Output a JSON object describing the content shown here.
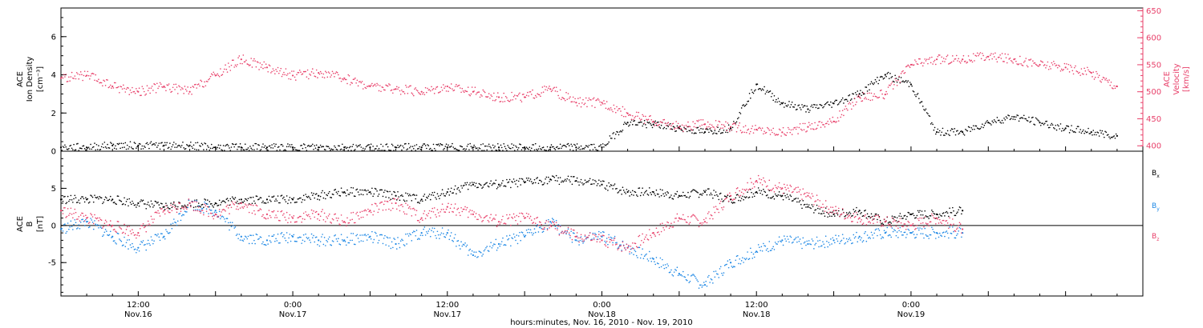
{
  "chart_data": [
    {
      "type": "scatter",
      "panel": "top",
      "ylabel": [
        "ACE",
        "Ion Density",
        "[cm⁻³]"
      ],
      "y_ticks": [
        0,
        2,
        4,
        6
      ],
      "ylim": [
        0,
        7.5
      ],
      "y2label": [
        "ACE",
        "Velocity",
        "[km/s]"
      ],
      "y2_ticks": [
        400,
        450,
        500,
        550,
        600,
        650
      ],
      "y2lim": [
        390,
        655
      ],
      "x_hours_range": [
        0,
        84
      ],
      "series": [
        {
          "name": "",
          "color": "#000000",
          "axis": "left",
          "x_hours": [
            0,
            2,
            4,
            6,
            8,
            10,
            12,
            14,
            16,
            18,
            20,
            22,
            24,
            26,
            28,
            30,
            32,
            34,
            36,
            38,
            40,
            42,
            44,
            46,
            48,
            50,
            52,
            54,
            56,
            58,
            60,
            62,
            64,
            66,
            68,
            70,
            72,
            74,
            76,
            78,
            80,
            82
          ],
          "values": [
            0.2,
            0.2,
            0.3,
            0.3,
            0.3,
            0.3,
            0.2,
            0.2,
            0.2,
            0.2,
            0.2,
            0.2,
            0.2,
            0.2,
            0.2,
            0.2,
            0.2,
            0.2,
            0.2,
            0.2,
            0.2,
            0.2,
            1.5,
            1.4,
            1.2,
            1.0,
            1.2,
            3.5,
            2.5,
            2.2,
            2.5,
            3.0,
            4.0,
            3.5,
            1.0,
            1.0,
            1.5,
            1.8,
            1.5,
            1.2,
            1.0,
            0.8
          ]
        },
        {
          "name": "",
          "color": "#e8406a",
          "axis": "right",
          "x_hours": [
            0,
            2,
            4,
            6,
            8,
            10,
            12,
            14,
            16,
            18,
            20,
            22,
            24,
            26,
            28,
            30,
            32,
            34,
            36,
            38,
            40,
            42,
            44,
            46,
            48,
            50,
            52,
            54,
            56,
            58,
            60,
            62,
            64,
            66,
            68,
            70,
            72,
            74,
            76,
            78,
            80,
            82
          ],
          "values": [
            525,
            530,
            510,
            500,
            510,
            500,
            530,
            560,
            545,
            530,
            535,
            525,
            510,
            505,
            500,
            510,
            500,
            490,
            490,
            505,
            480,
            480,
            460,
            445,
            435,
            440,
            435,
            430,
            425,
            435,
            445,
            490,
            495,
            550,
            560,
            560,
            565,
            560,
            550,
            545,
            535,
            510
          ]
        }
      ]
    },
    {
      "type": "scatter",
      "panel": "bottom",
      "ylabel": [
        "ACE",
        "B",
        "[nT]"
      ],
      "y_ticks": [
        -5,
        0,
        5
      ],
      "ylim": [
        -9.5,
        10
      ],
      "xlabel": "hours:minutes, Nov. 16, 2010 - Nov. 19, 2010",
      "x_hours_range": [
        0,
        84
      ],
      "x_ticks": [
        {
          "hour": 6,
          "time": "12:00",
          "date": "Nov.16"
        },
        {
          "hour": 18,
          "time": "0:00",
          "date": "Nov.17"
        },
        {
          "hour": 30,
          "time": "12:00",
          "date": "Nov.17"
        },
        {
          "hour": 42,
          "time": "0:00",
          "date": "Nov.18"
        },
        {
          "hour": 54,
          "time": "12:00",
          "date": "Nov.18"
        },
        {
          "hour": 66,
          "time": "0:00",
          "date": "Nov.19"
        }
      ],
      "series": [
        {
          "name": "Bx",
          "color": "#000000",
          "x_hours": [
            0,
            2,
            4,
            6,
            8,
            10,
            12,
            14,
            16,
            18,
            20,
            22,
            24,
            26,
            28,
            30,
            32,
            34,
            36,
            38,
            40,
            42,
            44,
            46,
            48,
            50,
            52,
            54,
            56,
            58,
            60,
            62,
            64,
            66,
            68,
            70
          ],
          "values": [
            3.5,
            3.5,
            3.5,
            3.0,
            2.5,
            3.0,
            3.0,
            3.5,
            3.5,
            3.5,
            4.0,
            4.5,
            4.5,
            4.0,
            3.5,
            4.5,
            5.5,
            5.5,
            5.8,
            6.2,
            6.0,
            5.5,
            4.5,
            4.5,
            4.0,
            4.5,
            3.5,
            4.5,
            4.0,
            2.5,
            1.5,
            2.0,
            0.5,
            1.5,
            1.5,
            2.0
          ]
        },
        {
          "name": "By",
          "color": "#1e88e5",
          "x_hours": [
            0,
            2,
            4,
            6,
            8,
            10,
            12,
            14,
            16,
            18,
            20,
            22,
            24,
            26,
            28,
            30,
            32,
            34,
            36,
            38,
            40,
            42,
            44,
            46,
            48,
            50,
            52,
            54,
            56,
            58,
            60,
            62,
            64,
            66,
            68,
            70
          ],
          "values": [
            -0.5,
            0.5,
            -1.5,
            -3.0,
            -1.5,
            3.0,
            2.0,
            -1.5,
            -2.0,
            -1.5,
            -2.0,
            -2.0,
            -1.5,
            -2.5,
            -1.0,
            -1.0,
            -4.0,
            -2.5,
            -1.5,
            0.5,
            -2.0,
            -1.5,
            -3.0,
            -4.5,
            -6.5,
            -8.0,
            -5.0,
            -3.5,
            -2.0,
            -2.5,
            -2.0,
            -1.5,
            -1.0,
            -1.0,
            -1.0,
            -1.0
          ]
        },
        {
          "name": "Bz",
          "color": "#e8406a",
          "x_hours": [
            0,
            2,
            4,
            6,
            8,
            10,
            12,
            14,
            16,
            18,
            20,
            22,
            24,
            26,
            28,
            30,
            32,
            34,
            36,
            38,
            40,
            42,
            44,
            46,
            48,
            50,
            52,
            54,
            56,
            58,
            60,
            62,
            64,
            66,
            68,
            70
          ],
          "values": [
            2.0,
            1.0,
            0.0,
            -1.0,
            2.0,
            3.0,
            1.5,
            3.0,
            1.5,
            1.0,
            1.5,
            0.5,
            2.0,
            3.0,
            1.0,
            2.5,
            1.5,
            0.5,
            1.0,
            0.0,
            -1.5,
            -2.0,
            -3.0,
            -1.0,
            1.0,
            0.5,
            4.0,
            6.0,
            5.0,
            4.0,
            2.0,
            1.0,
            0.5,
            0.0,
            1.0,
            -0.5
          ]
        }
      ],
      "legend": [
        {
          "main": "B",
          "sub": "x",
          "color": "#000000"
        },
        {
          "main": "B",
          "sub": "y",
          "color": "#1e88e5"
        },
        {
          "main": "B",
          "sub": "z",
          "color": "#e8406a"
        }
      ]
    }
  ]
}
